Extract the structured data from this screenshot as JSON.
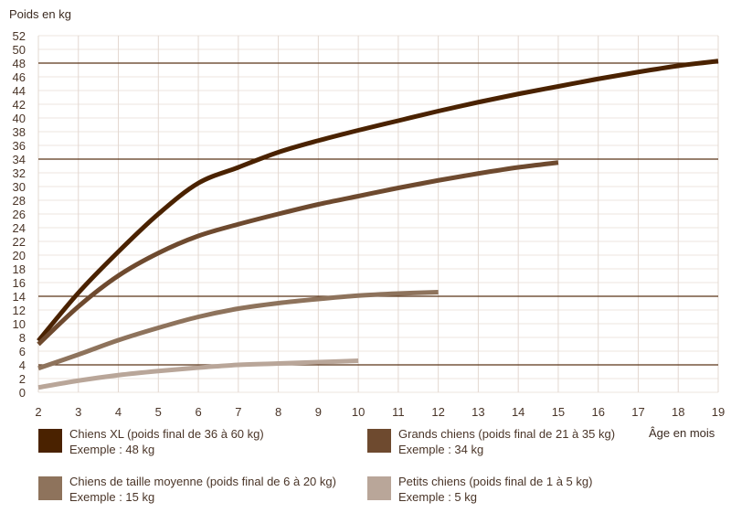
{
  "chart_data": {
    "type": "line",
    "ylabel": "Poids en kg",
    "xlabel": "Âge en mois",
    "xlim": [
      2,
      19
    ],
    "ylim": [
      0,
      52
    ],
    "xticks": [
      2,
      3,
      4,
      5,
      6,
      7,
      8,
      9,
      10,
      11,
      12,
      13,
      14,
      15,
      16,
      17,
      18,
      19
    ],
    "yticks": [
      0,
      2,
      4,
      6,
      8,
      10,
      12,
      14,
      16,
      18,
      20,
      22,
      24,
      26,
      28,
      30,
      32,
      34,
      36,
      38,
      40,
      42,
      44,
      46,
      48,
      50,
      52
    ],
    "grid": true,
    "reference_lines": [
      4,
      14,
      34,
      48
    ],
    "legend_position": "bottom",
    "series": [
      {
        "name": "Chiens XL (poids final de 36 à 60 kg)",
        "example": "Exemple : 48 kg",
        "color": "#4a2200",
        "x": [
          2,
          3,
          4,
          5,
          6,
          7,
          8,
          9,
          10,
          11,
          12,
          13,
          14,
          15,
          16,
          17,
          18,
          19
        ],
        "y": [
          7.5,
          14.5,
          20.5,
          26,
          30.5,
          32.8,
          35,
          36.7,
          38.2,
          39.6,
          41,
          42.3,
          43.5,
          44.6,
          45.7,
          46.7,
          47.6,
          48.3
        ]
      },
      {
        "name": "Grands chiens (poids final de 21 à 35 kg)",
        "example": "Exemple : 34 kg",
        "color": "#6e4a2f",
        "x": [
          2,
          3,
          4,
          5,
          6,
          7,
          8,
          9,
          10,
          11,
          12,
          13,
          14,
          15
        ],
        "y": [
          7,
          12.5,
          17,
          20.3,
          22.8,
          24.5,
          26,
          27.4,
          28.6,
          29.8,
          30.9,
          31.9,
          32.8,
          33.5
        ]
      },
      {
        "name": "Chiens de taille moyenne (poids final de 6 à 20 kg)",
        "example": "Exemple : 15 kg",
        "color": "#8e735c",
        "x": [
          2,
          3,
          4,
          5,
          6,
          7,
          8,
          9,
          10,
          11,
          12
        ],
        "y": [
          3.5,
          5.5,
          7.6,
          9.4,
          11,
          12.2,
          13,
          13.6,
          14.1,
          14.4,
          14.6
        ]
      },
      {
        "name": "Petits chiens (poids final de 1 à 5 kg)",
        "example": "Exemple : 5 kg",
        "color": "#b9a699",
        "x": [
          2,
          3,
          4,
          5,
          6,
          7,
          8,
          9,
          10
        ],
        "y": [
          0.7,
          1.7,
          2.5,
          3.1,
          3.6,
          4,
          4.2,
          4.4,
          4.6
        ]
      }
    ]
  }
}
